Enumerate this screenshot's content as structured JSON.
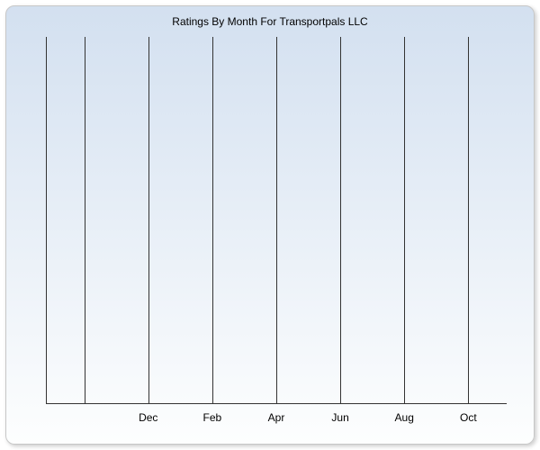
{
  "chart": {
    "type": "line",
    "title": "Ratings By Month For Transportpals LLC",
    "title_fontsize": 12,
    "title_color": "#000000",
    "background_gradient_top": "#d3e0f0",
    "background_gradient_bottom": "#fdfefe",
    "border_color": "#c7c7c7",
    "border_radius": 10,
    "axis_color": "#333333",
    "gridline_color": "#333333",
    "x_ticks_count": 7,
    "x_ticks": [
      {
        "pos": 0.0833,
        "label": ""
      },
      {
        "pos": 0.2222,
        "label": "Dec"
      },
      {
        "pos": 0.3611,
        "label": "Feb"
      },
      {
        "pos": 0.5,
        "label": "Apr"
      },
      {
        "pos": 0.6389,
        "label": "Jun"
      },
      {
        "pos": 0.7778,
        "label": "Aug"
      },
      {
        "pos": 0.9167,
        "label": "Oct"
      }
    ],
    "x_label_fontsize": 12,
    "x_label_color": "#000000",
    "series": []
  }
}
